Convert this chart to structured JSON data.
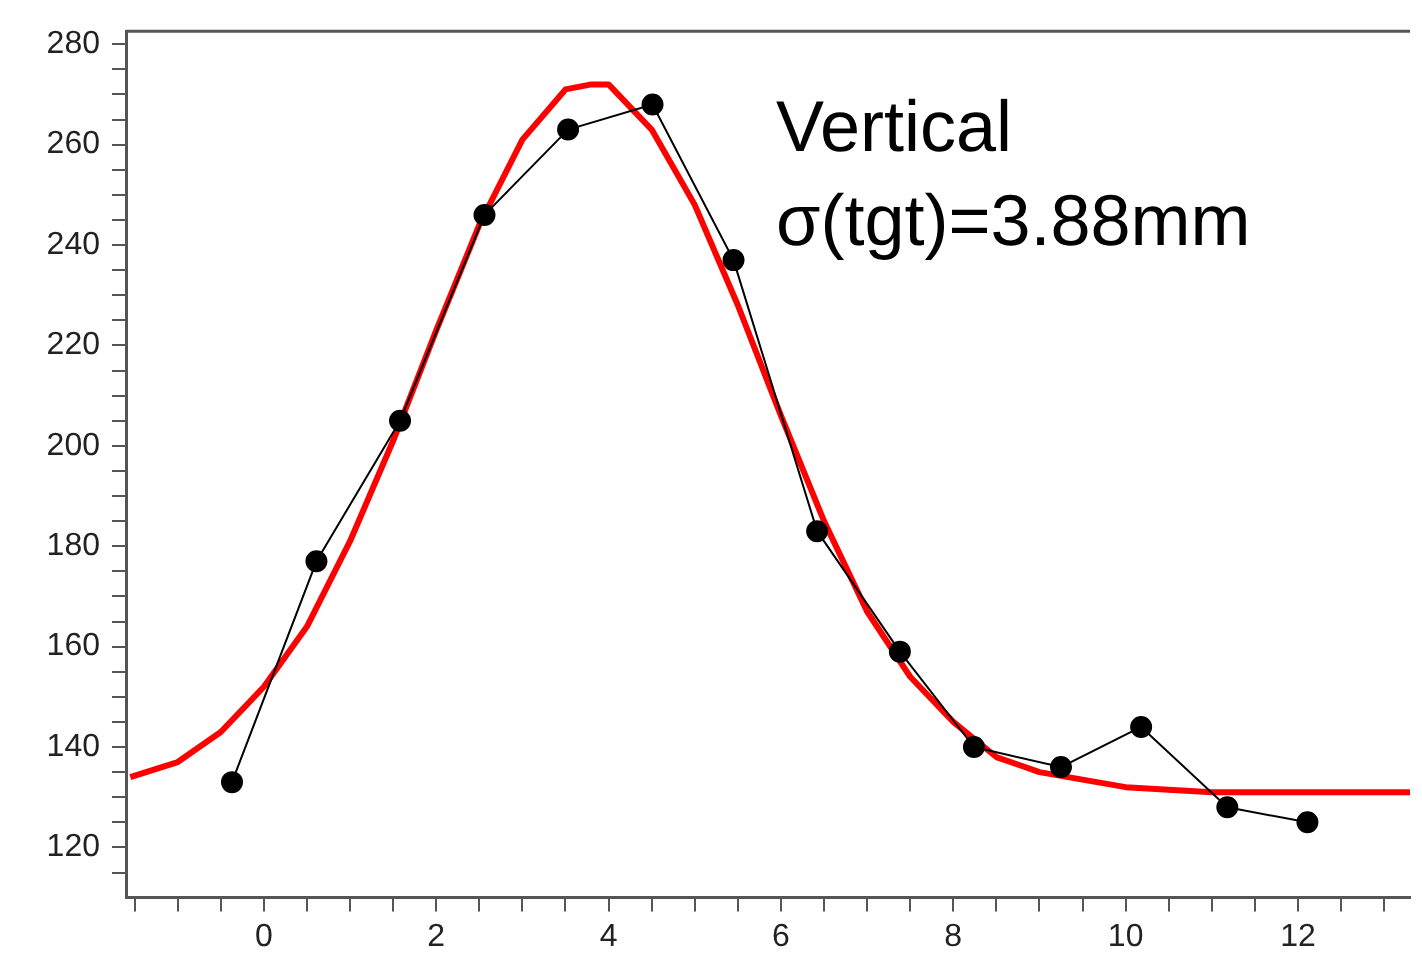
{
  "chart_data": {
    "type": "line",
    "xlim": [
      -1.6,
      13.3
    ],
    "ylim": [
      110,
      282.6
    ],
    "xticks": [
      {
        "value": -1.5,
        "label": null
      },
      {
        "value": -1,
        "label": null
      },
      {
        "value": -0.5,
        "label": null
      },
      0,
      {
        "value": 0.5,
        "label": null
      },
      {
        "value": 1,
        "label": null
      },
      {
        "value": 1.5,
        "label": null
      },
      2,
      {
        "value": 2.5,
        "label": null
      },
      {
        "value": 3,
        "label": null
      },
      {
        "value": 3.5,
        "label": null
      },
      4,
      {
        "value": 4.5,
        "label": null
      },
      {
        "value": 5,
        "label": null
      },
      {
        "value": 5.5,
        "label": null
      },
      6,
      {
        "value": 6.5,
        "label": null
      },
      {
        "value": 7,
        "label": null
      },
      {
        "value": 7.5,
        "label": null
      },
      8,
      {
        "value": 8.5,
        "label": null
      },
      {
        "value": 9,
        "label": null
      },
      {
        "value": 9.5,
        "label": null
      },
      10,
      {
        "value": 10.5,
        "label": null
      },
      {
        "value": 11,
        "label": null
      },
      {
        "value": 11.5,
        "label": null
      },
      12,
      {
        "value": 12.5,
        "label": null
      },
      {
        "value": 13,
        "label": null
      }
    ],
    "yticks": [
      {
        "value": 115,
        "label": null
      },
      120,
      {
        "value": 125,
        "label": null
      },
      {
        "value": 130,
        "label": null
      },
      {
        "value": 135,
        "label": null
      },
      140,
      {
        "value": 145,
        "label": null
      },
      {
        "value": 150,
        "label": null
      },
      {
        "value": 155,
        "label": null
      },
      160,
      {
        "value": 165,
        "label": null
      },
      {
        "value": 170,
        "label": null
      },
      {
        "value": 175,
        "label": null
      },
      180,
      {
        "value": 185,
        "label": null
      },
      {
        "value": 190,
        "label": null
      },
      {
        "value": 195,
        "label": null
      },
      200,
      {
        "value": 205,
        "label": null
      },
      {
        "value": 210,
        "label": null
      },
      {
        "value": 215,
        "label": null
      },
      220,
      {
        "value": 225,
        "label": null
      },
      {
        "value": 230,
        "label": null
      },
      {
        "value": 235,
        "label": null
      },
      240,
      {
        "value": 245,
        "label": null
      },
      {
        "value": 250,
        "label": null
      },
      {
        "value": 255,
        "label": null
      },
      260,
      {
        "value": 265,
        "label": null
      },
      {
        "value": 270,
        "label": null
      },
      {
        "value": 275,
        "label": null
      },
      280
    ],
    "grid": false,
    "legend": false,
    "annotations": [
      "Vertical",
      "σ(tgt)=3.88mm"
    ],
    "series": [
      {
        "marker": "circle",
        "color": "#000000",
        "x": [
          -0.37,
          0.61,
          1.58,
          2.56,
          3.53,
          4.51,
          5.45,
          6.42,
          7.38,
          8.24,
          9.25,
          10.18,
          11.18,
          12.11
        ],
        "values": [
          133,
          177,
          205,
          246,
          263,
          268,
          237,
          183,
          159,
          140,
          136,
          144,
          128,
          125
        ]
      },
      {
        "marker": "none",
        "color": "#ff0000",
        "x": [
          -1.55,
          -1,
          -0.5,
          0,
          0.5,
          1,
          1.5,
          2,
          2.5,
          3,
          3.5,
          3.8,
          4,
          4.5,
          5,
          5.5,
          6,
          6.5,
          7,
          7.5,
          8,
          8.5,
          9,
          10,
          11,
          12,
          13.3
        ],
        "values": [
          134,
          137,
          143,
          152,
          164,
          181,
          201,
          223,
          244,
          261,
          271,
          272,
          272,
          263,
          248,
          228,
          206,
          185,
          167,
          154,
          145,
          138,
          135,
          132,
          131,
          131,
          131
        ]
      }
    ]
  }
}
